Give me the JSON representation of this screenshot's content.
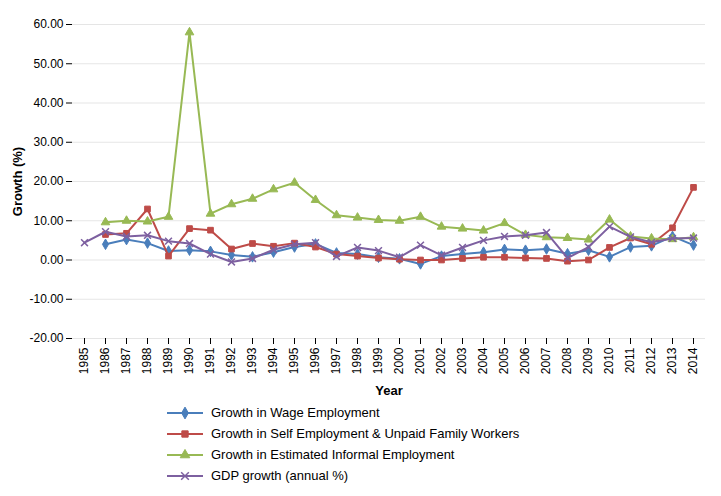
{
  "chart_data": {
    "type": "line",
    "x_label": "Year",
    "y_label": "Growth (%)",
    "categories": [
      "1985",
      "1986",
      "1987",
      "1988",
      "1989",
      "1990",
      "1991",
      "1992",
      "1993",
      "1994",
      "1995",
      "1996",
      "1997",
      "1998",
      "1999",
      "2000",
      "2001",
      "2002",
      "2003",
      "2004",
      "2005",
      "2006",
      "2007",
      "2008",
      "2009",
      "2010",
      "2011",
      "2012",
      "2013",
      "2014"
    ],
    "series": [
      {
        "name": "Growth in Wage Employment",
        "color": "#4a7ebb",
        "marker": "diamond",
        "values": [
          null,
          4.0,
          5.2,
          4.3,
          2.3,
          2.5,
          2.2,
          1.3,
          0.8,
          2.0,
          3.3,
          4.1,
          1.8,
          1.5,
          0.7,
          0.3,
          -1.0,
          1.0,
          1.5,
          2.0,
          2.7,
          2.5,
          2.8,
          1.6,
          2.5,
          0.8,
          3.3,
          3.6,
          6.0,
          3.8
        ]
      },
      {
        "name": "Growth in Self Employment & Unpaid Family Workers",
        "color": "#be4b48",
        "marker": "square",
        "values": [
          null,
          6.5,
          6.8,
          13.0,
          1.0,
          8.0,
          7.6,
          2.8,
          4.2,
          3.5,
          4.3,
          3.3,
          1.5,
          1.0,
          0.5,
          0.2,
          0.0,
          0.0,
          0.4,
          0.7,
          0.7,
          0.5,
          0.4,
          -0.3,
          0.0,
          3.2,
          5.6,
          4.0,
          8.2,
          18.5
        ]
      },
      {
        "name": "Growth in Estimated Informal Employment",
        "color": "#98b954",
        "marker": "triangle",
        "values": [
          null,
          9.6,
          10.0,
          9.8,
          11.0,
          58.0,
          11.8,
          14.2,
          15.6,
          18.0,
          19.7,
          15.3,
          11.4,
          10.8,
          10.2,
          10.0,
          11.0,
          8.5,
          8.0,
          7.5,
          9.4,
          6.4,
          5.8,
          5.6,
          5.2,
          10.3,
          6.0,
          5.5,
          5.3,
          5.8
        ]
      },
      {
        "name": "GDP growth (annual %)",
        "color": "#7d60a0",
        "marker": "x",
        "values": [
          4.4,
          7.2,
          6.0,
          6.3,
          4.8,
          4.2,
          1.5,
          -0.5,
          0.4,
          2.6,
          4.0,
          4.4,
          0.9,
          3.2,
          2.4,
          0.7,
          3.8,
          1.2,
          3.2,
          5.0,
          6.0,
          6.3,
          7.0,
          0.5,
          3.3,
          8.5,
          5.9,
          4.5,
          5.5,
          5.6
        ]
      }
    ],
    "ylim": [
      -20,
      60
    ],
    "yticks": [
      {
        "value": -20,
        "label": "-20.00"
      },
      {
        "value": -10,
        "label": "-10.00"
      },
      {
        "value": 0,
        "label": "0.00"
      },
      {
        "value": 10,
        "label": "10.00"
      },
      {
        "value": 20,
        "label": "20.00"
      },
      {
        "value": 30,
        "label": "30.00"
      },
      {
        "value": 40,
        "label": "40.00"
      },
      {
        "value": 50,
        "label": "50.00"
      },
      {
        "value": 60,
        "label": "60.00"
      }
    ],
    "grid": true,
    "legend": "bottom"
  }
}
